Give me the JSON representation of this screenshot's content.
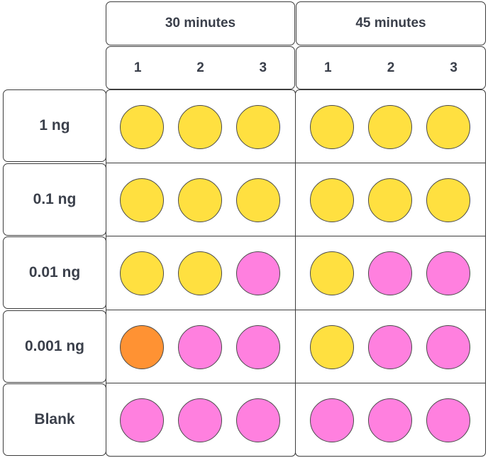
{
  "time_groups": [
    {
      "label": "30 minutes",
      "replicates": [
        "1",
        "2",
        "3"
      ]
    },
    {
      "label": "45 minutes",
      "replicates": [
        "1",
        "2",
        "3"
      ]
    }
  ],
  "rows": [
    {
      "label": "1 ng",
      "results": [
        [
          "yellow",
          "yellow",
          "yellow"
        ],
        [
          "yellow",
          "yellow",
          "yellow"
        ]
      ]
    },
    {
      "label": "0.1 ng",
      "results": [
        [
          "yellow",
          "yellow",
          "yellow"
        ],
        [
          "yellow",
          "yellow",
          "yellow"
        ]
      ]
    },
    {
      "label": "0.01 ng",
      "results": [
        [
          "yellow",
          "yellow",
          "pink"
        ],
        [
          "yellow",
          "pink",
          "pink"
        ]
      ]
    },
    {
      "label": "0.001 ng",
      "results": [
        [
          "orange",
          "pink",
          "pink"
        ],
        [
          "yellow",
          "pink",
          "pink"
        ]
      ]
    },
    {
      "label": "Blank",
      "results": [
        [
          "pink",
          "pink",
          "pink"
        ],
        [
          "pink",
          "pink",
          "pink"
        ]
      ]
    }
  ],
  "colors": {
    "yellow": "#FFE040",
    "pink": "#FF80DF",
    "orange": "#FF9233"
  }
}
